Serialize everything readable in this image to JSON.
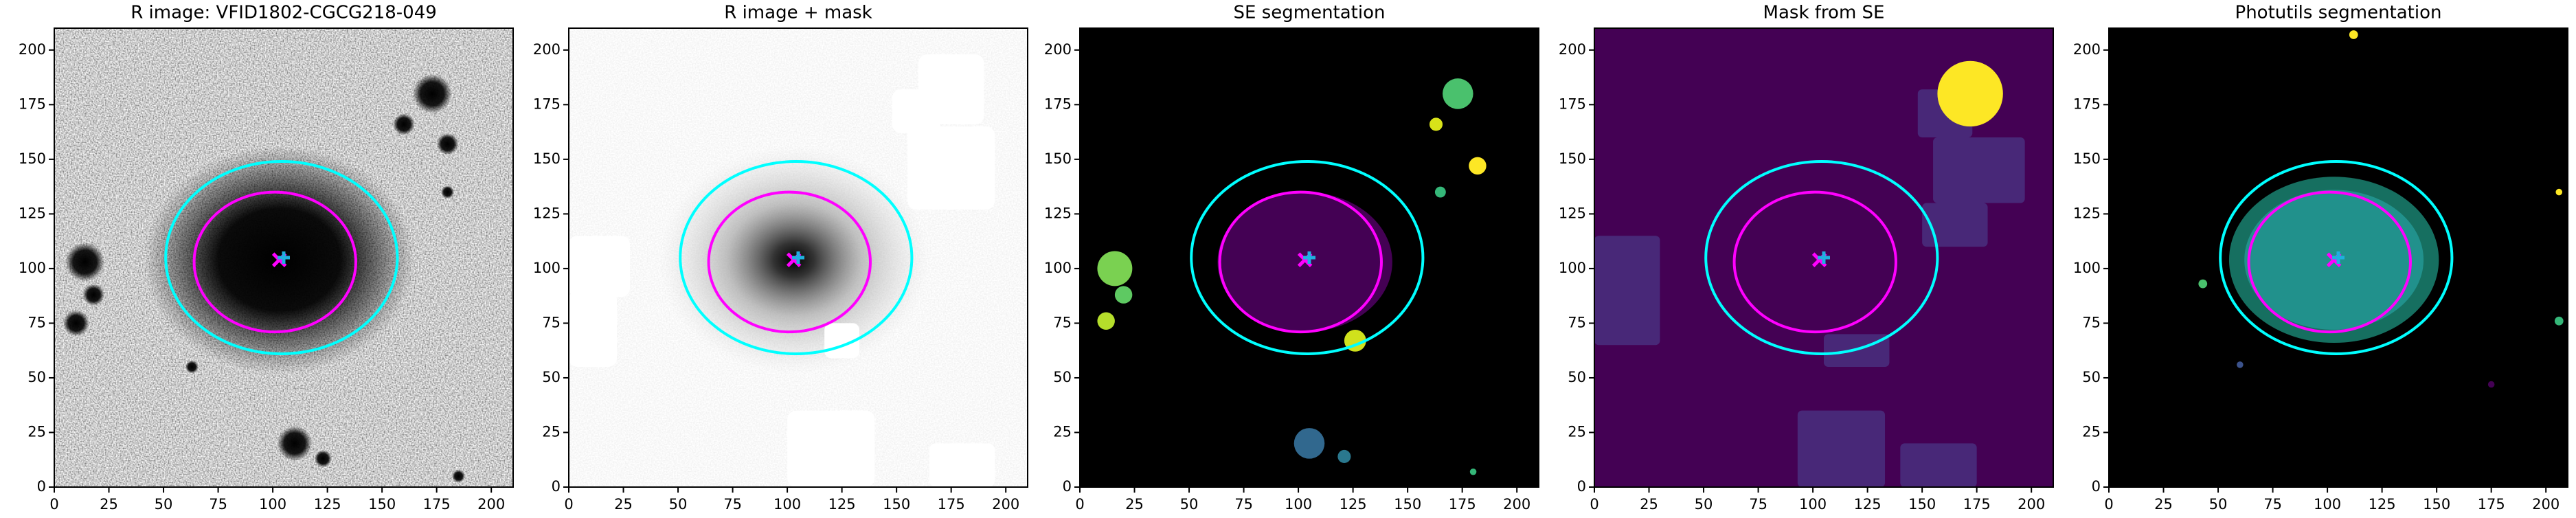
{
  "chart_data": [
    {
      "type": "image",
      "title": "R image: VFID1802-CGCG218-049",
      "xlim": [
        0,
        210
      ],
      "ylim": [
        0,
        210
      ],
      "xticks": [
        0,
        25,
        50,
        75,
        100,
        125,
        150,
        175,
        200
      ],
      "yticks": [
        0,
        25,
        50,
        75,
        100,
        125,
        150,
        175,
        200
      ],
      "ellipses": [
        {
          "cx": 104,
          "cy": 105,
          "rx": 53,
          "ry": 44,
          "color": "#00ffff"
        },
        {
          "cx": 101,
          "cy": 103,
          "rx": 37,
          "ry": 32,
          "color": "#ff00ff"
        }
      ],
      "markers": [
        {
          "x": 103,
          "y": 104,
          "symbol": "x",
          "color": "#ff00ff"
        },
        {
          "x": 105,
          "y": 105,
          "symbol": "+",
          "color": "#1fb0e0"
        }
      ]
    },
    {
      "type": "image",
      "title": "R image + mask",
      "xlim": [
        0,
        210
      ],
      "ylim": [
        0,
        210
      ],
      "xticks": [
        0,
        25,
        50,
        75,
        100,
        125,
        150,
        175,
        200
      ],
      "yticks": [
        0,
        25,
        50,
        75,
        100,
        125,
        150,
        175,
        200
      ],
      "ellipses": [
        {
          "cx": 104,
          "cy": 105,
          "rx": 53,
          "ry": 44,
          "color": "#00ffff"
        },
        {
          "cx": 101,
          "cy": 103,
          "rx": 37,
          "ry": 32,
          "color": "#ff00ff"
        }
      ],
      "markers": [
        {
          "x": 103,
          "y": 104,
          "symbol": "x",
          "color": "#ff00ff"
        },
        {
          "x": 105,
          "y": 105,
          "symbol": "+",
          "color": "#1fb0e0"
        }
      ]
    },
    {
      "type": "image",
      "title": "SE segmentation",
      "xlim": [
        0,
        210
      ],
      "ylim": [
        0,
        210
      ],
      "xticks": [
        0,
        25,
        50,
        75,
        100,
        125,
        150,
        175,
        200
      ],
      "yticks": [
        0,
        25,
        50,
        75,
        100,
        125,
        150,
        175,
        200
      ],
      "ellipses": [
        {
          "cx": 104,
          "cy": 105,
          "rx": 53,
          "ry": 44,
          "color": "#00ffff"
        },
        {
          "cx": 101,
          "cy": 103,
          "rx": 37,
          "ry": 32,
          "color": "#ff00ff"
        }
      ],
      "markers": [
        {
          "x": 103,
          "y": 104,
          "symbol": "x",
          "color": "#ff00ff"
        },
        {
          "x": 105,
          "y": 105,
          "symbol": "+",
          "color": "#1fb0e0"
        }
      ]
    },
    {
      "type": "image",
      "title": "Mask from SE",
      "xlim": [
        0,
        210
      ],
      "ylim": [
        0,
        210
      ],
      "xticks": [
        0,
        25,
        50,
        75,
        100,
        125,
        150,
        175,
        200
      ],
      "yticks": [
        0,
        25,
        50,
        75,
        100,
        125,
        150,
        175,
        200
      ],
      "ellipses": [
        {
          "cx": 104,
          "cy": 105,
          "rx": 53,
          "ry": 44,
          "color": "#00ffff"
        },
        {
          "cx": 101,
          "cy": 103,
          "rx": 37,
          "ry": 32,
          "color": "#ff00ff"
        }
      ],
      "markers": [
        {
          "x": 103,
          "y": 104,
          "symbol": "x",
          "color": "#ff00ff"
        },
        {
          "x": 105,
          "y": 105,
          "symbol": "+",
          "color": "#1fb0e0"
        }
      ]
    },
    {
      "type": "image",
      "title": "Photutils segmentation",
      "xlim": [
        0,
        210
      ],
      "ylim": [
        0,
        210
      ],
      "xticks": [
        0,
        25,
        50,
        75,
        100,
        125,
        150,
        175,
        200
      ],
      "yticks": [
        0,
        25,
        50,
        75,
        100,
        125,
        150,
        175,
        200
      ],
      "ellipses": [
        {
          "cx": 104,
          "cy": 105,
          "rx": 53,
          "ry": 44,
          "color": "#00ffff"
        },
        {
          "cx": 101,
          "cy": 103,
          "rx": 37,
          "ry": 32,
          "color": "#ff00ff"
        }
      ],
      "markers": [
        {
          "x": 103,
          "y": 104,
          "symbol": "x",
          "color": "#ff00ff"
        },
        {
          "x": 105,
          "y": 105,
          "symbol": "+",
          "color": "#1fb0e0"
        }
      ]
    }
  ]
}
